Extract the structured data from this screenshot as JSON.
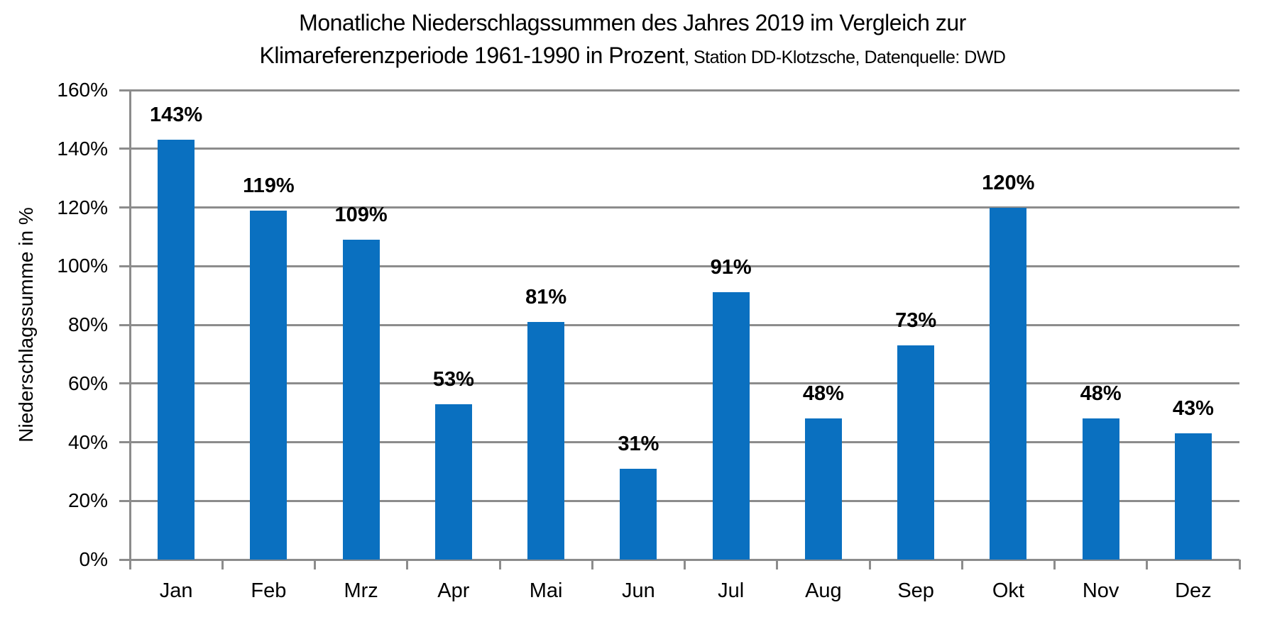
{
  "title": {
    "line1": "Monatliche Niederschlagssummen des Jahres 2019 im Vergleich zur",
    "line2_main": "Klimareferenzperiode 1961-1990 in Prozent",
    "line2_suffix": ", Station DD-Klotzsche, Datenquelle: DWD"
  },
  "chart_data": {
    "type": "bar",
    "title": "Monatliche Niederschlagssummen des Jahres 2019 im Vergleich zur Klimareferenzperiode 1961-1990 in Prozent, Station DD-Klotzsche, Datenquelle: DWD",
    "categories": [
      "Jan",
      "Feb",
      "Mrz",
      "Apr",
      "Mai",
      "Jun",
      "Jul",
      "Aug",
      "Sep",
      "Okt",
      "Nov",
      "Dez"
    ],
    "values": [
      143,
      119,
      109,
      53,
      81,
      31,
      91,
      48,
      73,
      120,
      48,
      43
    ],
    "data_labels": [
      "143%",
      "119%",
      "109%",
      "53%",
      "81%",
      "31%",
      "91%",
      "48%",
      "73%",
      "120%",
      "48%",
      "43%"
    ],
    "xlabel": "",
    "ylabel": "Niederschlagssumme in %",
    "ylim": [
      0,
      160
    ],
    "ytick_step": 20,
    "ytick_labels": [
      "0%",
      "20%",
      "40%",
      "60%",
      "80%",
      "100%",
      "120%",
      "140%",
      "160%"
    ],
    "grid": true,
    "legend": false,
    "colors": {
      "bar": "#0A70C0",
      "grid": "#8C8C8C",
      "axis": "#8C8C8C",
      "text": "#000000"
    }
  }
}
